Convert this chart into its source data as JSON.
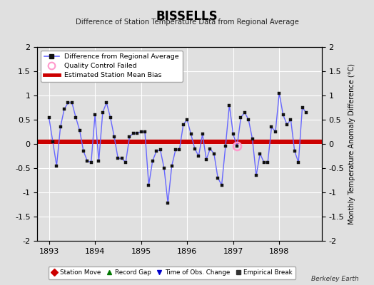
{
  "title": "BISSELLS",
  "subtitle": "Difference of Station Temperature Data from Regional Average",
  "ylabel": "Monthly Temperature Anomaly Difference (°C)",
  "xlim": [
    1892.75,
    1898.92
  ],
  "ylim": [
    -2,
    2
  ],
  "yticks": [
    -2,
    -1.5,
    -1,
    -0.5,
    0,
    0.5,
    1,
    1.5,
    2
  ],
  "xticks": [
    1893,
    1894,
    1895,
    1896,
    1897,
    1898
  ],
  "bias_value": 0.05,
  "bias_color": "#cc0000",
  "line_color": "#6666ff",
  "marker_color": "#111111",
  "qc_fail_indices": [
    49
  ],
  "qc_color": "#ff99cc",
  "background_color": "#e0e0e0",
  "grid_color": "#ffffff",
  "x_values": [
    1893.0,
    1893.083,
    1893.167,
    1893.25,
    1893.333,
    1893.417,
    1893.5,
    1893.583,
    1893.667,
    1893.75,
    1893.833,
    1893.917,
    1894.0,
    1894.083,
    1894.167,
    1894.25,
    1894.333,
    1894.417,
    1894.5,
    1894.583,
    1894.667,
    1894.75,
    1894.833,
    1894.917,
    1895.0,
    1895.083,
    1895.167,
    1895.25,
    1895.333,
    1895.417,
    1895.5,
    1895.583,
    1895.667,
    1895.75,
    1895.833,
    1895.917,
    1896.0,
    1896.083,
    1896.167,
    1896.25,
    1896.333,
    1896.417,
    1896.5,
    1896.583,
    1896.667,
    1896.75,
    1896.833,
    1896.917,
    1897.0,
    1897.083,
    1897.167,
    1897.25,
    1897.333,
    1897.417,
    1897.5,
    1897.583,
    1897.667,
    1897.75,
    1897.833,
    1897.917,
    1898.0,
    1898.083,
    1898.167,
    1898.25,
    1898.333,
    1898.417,
    1898.5,
    1898.583
  ],
  "y_values": [
    0.55,
    0.05,
    -0.45,
    0.35,
    0.72,
    0.85,
    0.85,
    0.55,
    0.28,
    -0.15,
    -0.35,
    -0.38,
    0.6,
    -0.35,
    0.65,
    0.85,
    0.55,
    0.15,
    -0.3,
    -0.3,
    -0.38,
    0.15,
    0.22,
    0.22,
    0.25,
    0.25,
    -0.85,
    -0.35,
    -0.15,
    -0.12,
    -0.5,
    -1.22,
    -0.45,
    -0.12,
    -0.12,
    0.4,
    0.5,
    0.2,
    -0.1,
    -0.25,
    0.2,
    -0.32,
    -0.1,
    -0.2,
    -0.7,
    -0.85,
    -0.05,
    0.8,
    0.2,
    -0.05,
    0.55,
    0.65,
    0.5,
    0.1,
    -0.65,
    -0.2,
    -0.38,
    -0.38,
    0.35,
    0.25,
    1.05,
    0.6,
    0.4,
    0.5,
    -0.15,
    -0.38,
    0.75,
    0.65
  ],
  "legend_top": [
    {
      "label": "Difference from Regional Average",
      "color": "#6666ff",
      "marker": "s",
      "mcolor": "#111111",
      "type": "line"
    },
    {
      "label": "Quality Control Failed",
      "color": "#ff99cc",
      "type": "open_circle"
    },
    {
      "label": "Estimated Station Mean Bias",
      "color": "#cc0000",
      "type": "line_only"
    }
  ],
  "legend_bottom": [
    {
      "label": "Station Move",
      "color": "#cc0000",
      "marker": "D"
    },
    {
      "label": "Record Gap",
      "color": "#007700",
      "marker": "^"
    },
    {
      "label": "Time of Obs. Change",
      "color": "#0000cc",
      "marker": "v"
    },
    {
      "label": "Empirical Break",
      "color": "#333333",
      "marker": "s"
    }
  ]
}
